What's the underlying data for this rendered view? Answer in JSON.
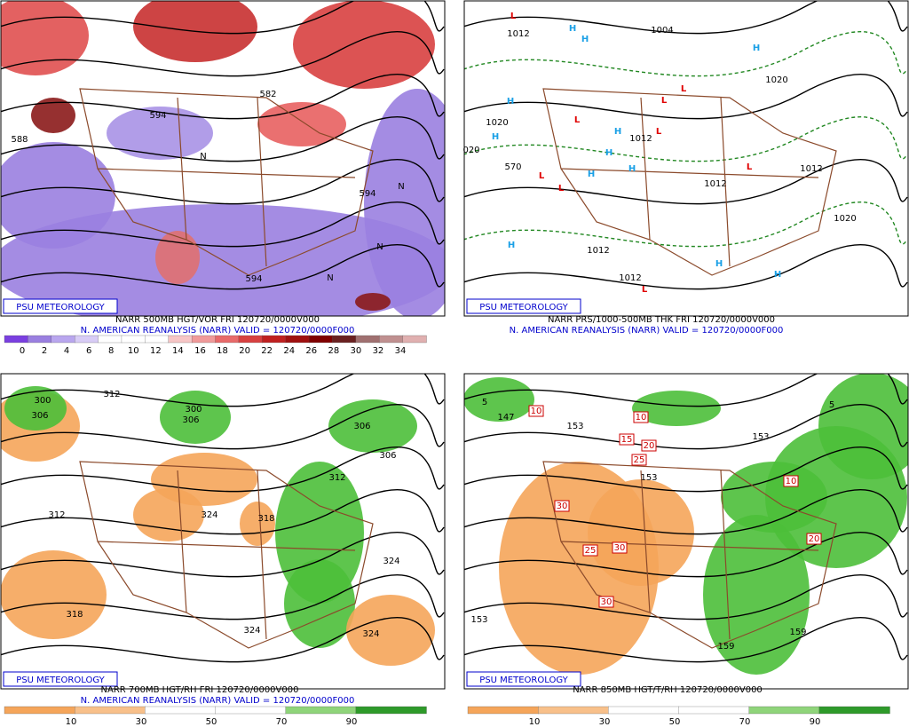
{
  "panels": [
    {
      "badge": "PSU METEOROLOGY",
      "caption": [
        "NARR 500MB HGT/VOR FRI 120720/0000V000",
        "N. AMERICAN REANALYSIS (NARR) VALID = 120720/0000F000"
      ],
      "colorbar": [
        0,
        2,
        4,
        6,
        8,
        10,
        12,
        14,
        16,
        18,
        20,
        22,
        24,
        26,
        28,
        30,
        32,
        34
      ],
      "labels": [
        "588",
        "594",
        "582",
        "594",
        "594",
        "N",
        "N",
        "N",
        "N"
      ]
    },
    {
      "badge": "PSU METEOROLOGY",
      "caption": [
        "NARR PRS/1000-500MB THK FRI 120720/0000V000",
        "N. AMERICAN REANALYSIS (NARR) VALID = 120720/0000F000"
      ],
      "colorbar": [],
      "labels": [
        "L",
        "H",
        "H",
        "1004",
        "1012",
        "H",
        "1020",
        "H",
        "H",
        "1020",
        "L",
        "L",
        "L",
        "L",
        "1012",
        "L",
        "L",
        "H",
        "H",
        "H",
        "H",
        "1012",
        "L",
        "1012",
        "1020",
        "H",
        "H",
        "H",
        "1012",
        "1012",
        "L",
        "570",
        "020"
      ]
    },
    {
      "badge": "PSU METEOROLOGY",
      "caption": [
        "NARR 700MB HGT/RH FRI 120720/0000V000",
        "N. AMERICAN REANALYSIS (NARR) VALID = 120720/0000F000"
      ],
      "colorbar": [
        10,
        30,
        50,
        70,
        90
      ],
      "labels": [
        "312",
        "306",
        "300",
        "300",
        "306",
        "312",
        "324",
        "318",
        "312",
        "306",
        "306",
        "324",
        "318",
        "324",
        "324"
      ]
    },
    {
      "badge": "PSU METEOROLOGY",
      "caption": [
        "NARR 850MB HGT/T/RH 120720/0000V000"
      ],
      "colorbar": [
        10,
        30,
        50,
        70,
        90
      ],
      "labels": [
        "5",
        "147",
        "153",
        "10",
        "10",
        "15",
        "20",
        "25",
        "153",
        "30",
        "30",
        "25",
        "30",
        "10",
        "20",
        "153",
        "5",
        "153",
        "159",
        "159"
      ]
    }
  ]
}
